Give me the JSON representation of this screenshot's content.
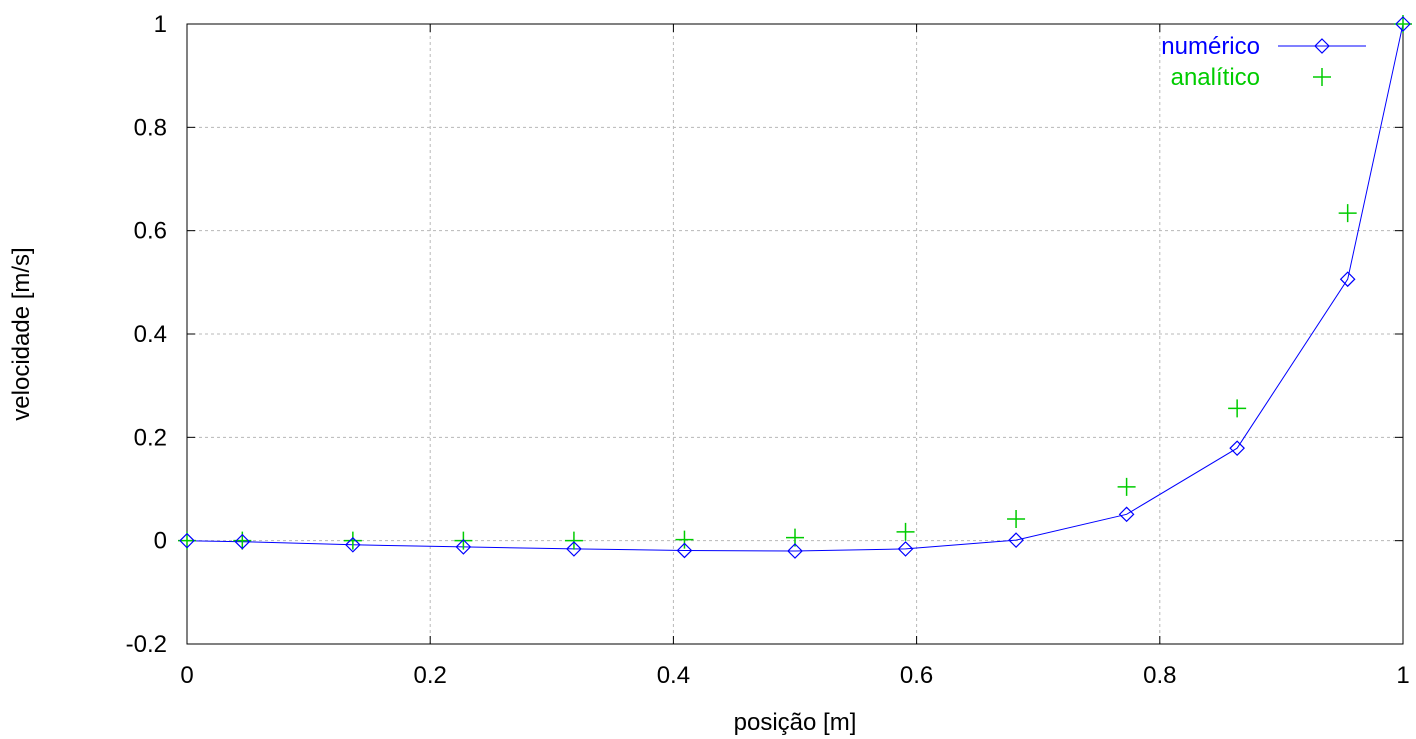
{
  "chart_data": {
    "type": "line",
    "xlabel": "posição [m]",
    "ylabel": "velocidade [m/s]",
    "xlim": [
      0,
      1
    ],
    "ylim": [
      -0.2,
      1
    ],
    "xticks": [
      "0",
      "0.2",
      "0.4",
      "0.6",
      "0.8",
      "1"
    ],
    "yticks": [
      "-0.2",
      "0",
      "0.2",
      "0.4",
      "0.6",
      "0.8",
      "1"
    ],
    "grid": true,
    "legend_position": "top-right",
    "series": [
      {
        "name": "numérico",
        "style": "line+diamond",
        "color": "#0000ff",
        "x": [
          0,
          0.0455,
          0.1364,
          0.2273,
          0.3182,
          0.4091,
          0.5,
          0.5909,
          0.6818,
          0.7727,
          0.8636,
          0.9545,
          1
        ],
        "y": [
          0,
          -0.002,
          -0.008,
          -0.012,
          -0.016,
          -0.019,
          -0.02,
          -0.016,
          0.001,
          0.051,
          0.179,
          0.506,
          1
        ]
      },
      {
        "name": "analítico",
        "style": "plus",
        "color": "#00cc00",
        "x": [
          0,
          0.0455,
          0.1364,
          0.2273,
          0.3182,
          0.4091,
          0.5,
          0.5909,
          0.6818,
          0.7727,
          0.8636,
          0.9545,
          1
        ],
        "y": [
          0,
          0,
          0,
          0,
          0,
          0.002,
          0.006,
          0.017,
          0.042,
          0.104,
          0.256,
          0.634,
          1
        ]
      }
    ]
  }
}
